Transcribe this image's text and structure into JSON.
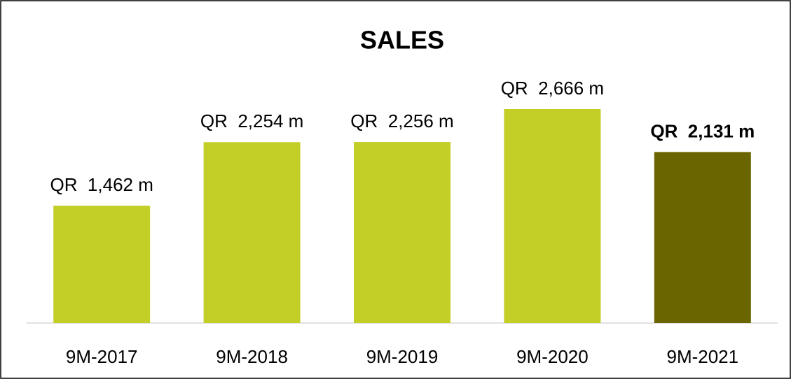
{
  "chart_data": {
    "type": "bar",
    "title": "SALES",
    "categories": [
      "9M-2017",
      "9M-2018",
      "9M-2019",
      "9M-2020",
      "9M-2021"
    ],
    "values": [
      1462,
      2254,
      2256,
      2666,
      2131
    ],
    "value_labels": [
      "QR  1,462 m",
      "QR  2,254 m",
      "QR  2,256 m",
      "QR  2,666 m",
      "QR  2,131 m"
    ],
    "colors": [
      "#c3cf27",
      "#c3cf27",
      "#c3cf27",
      "#c3cf27",
      "#6b6500"
    ]
  }
}
